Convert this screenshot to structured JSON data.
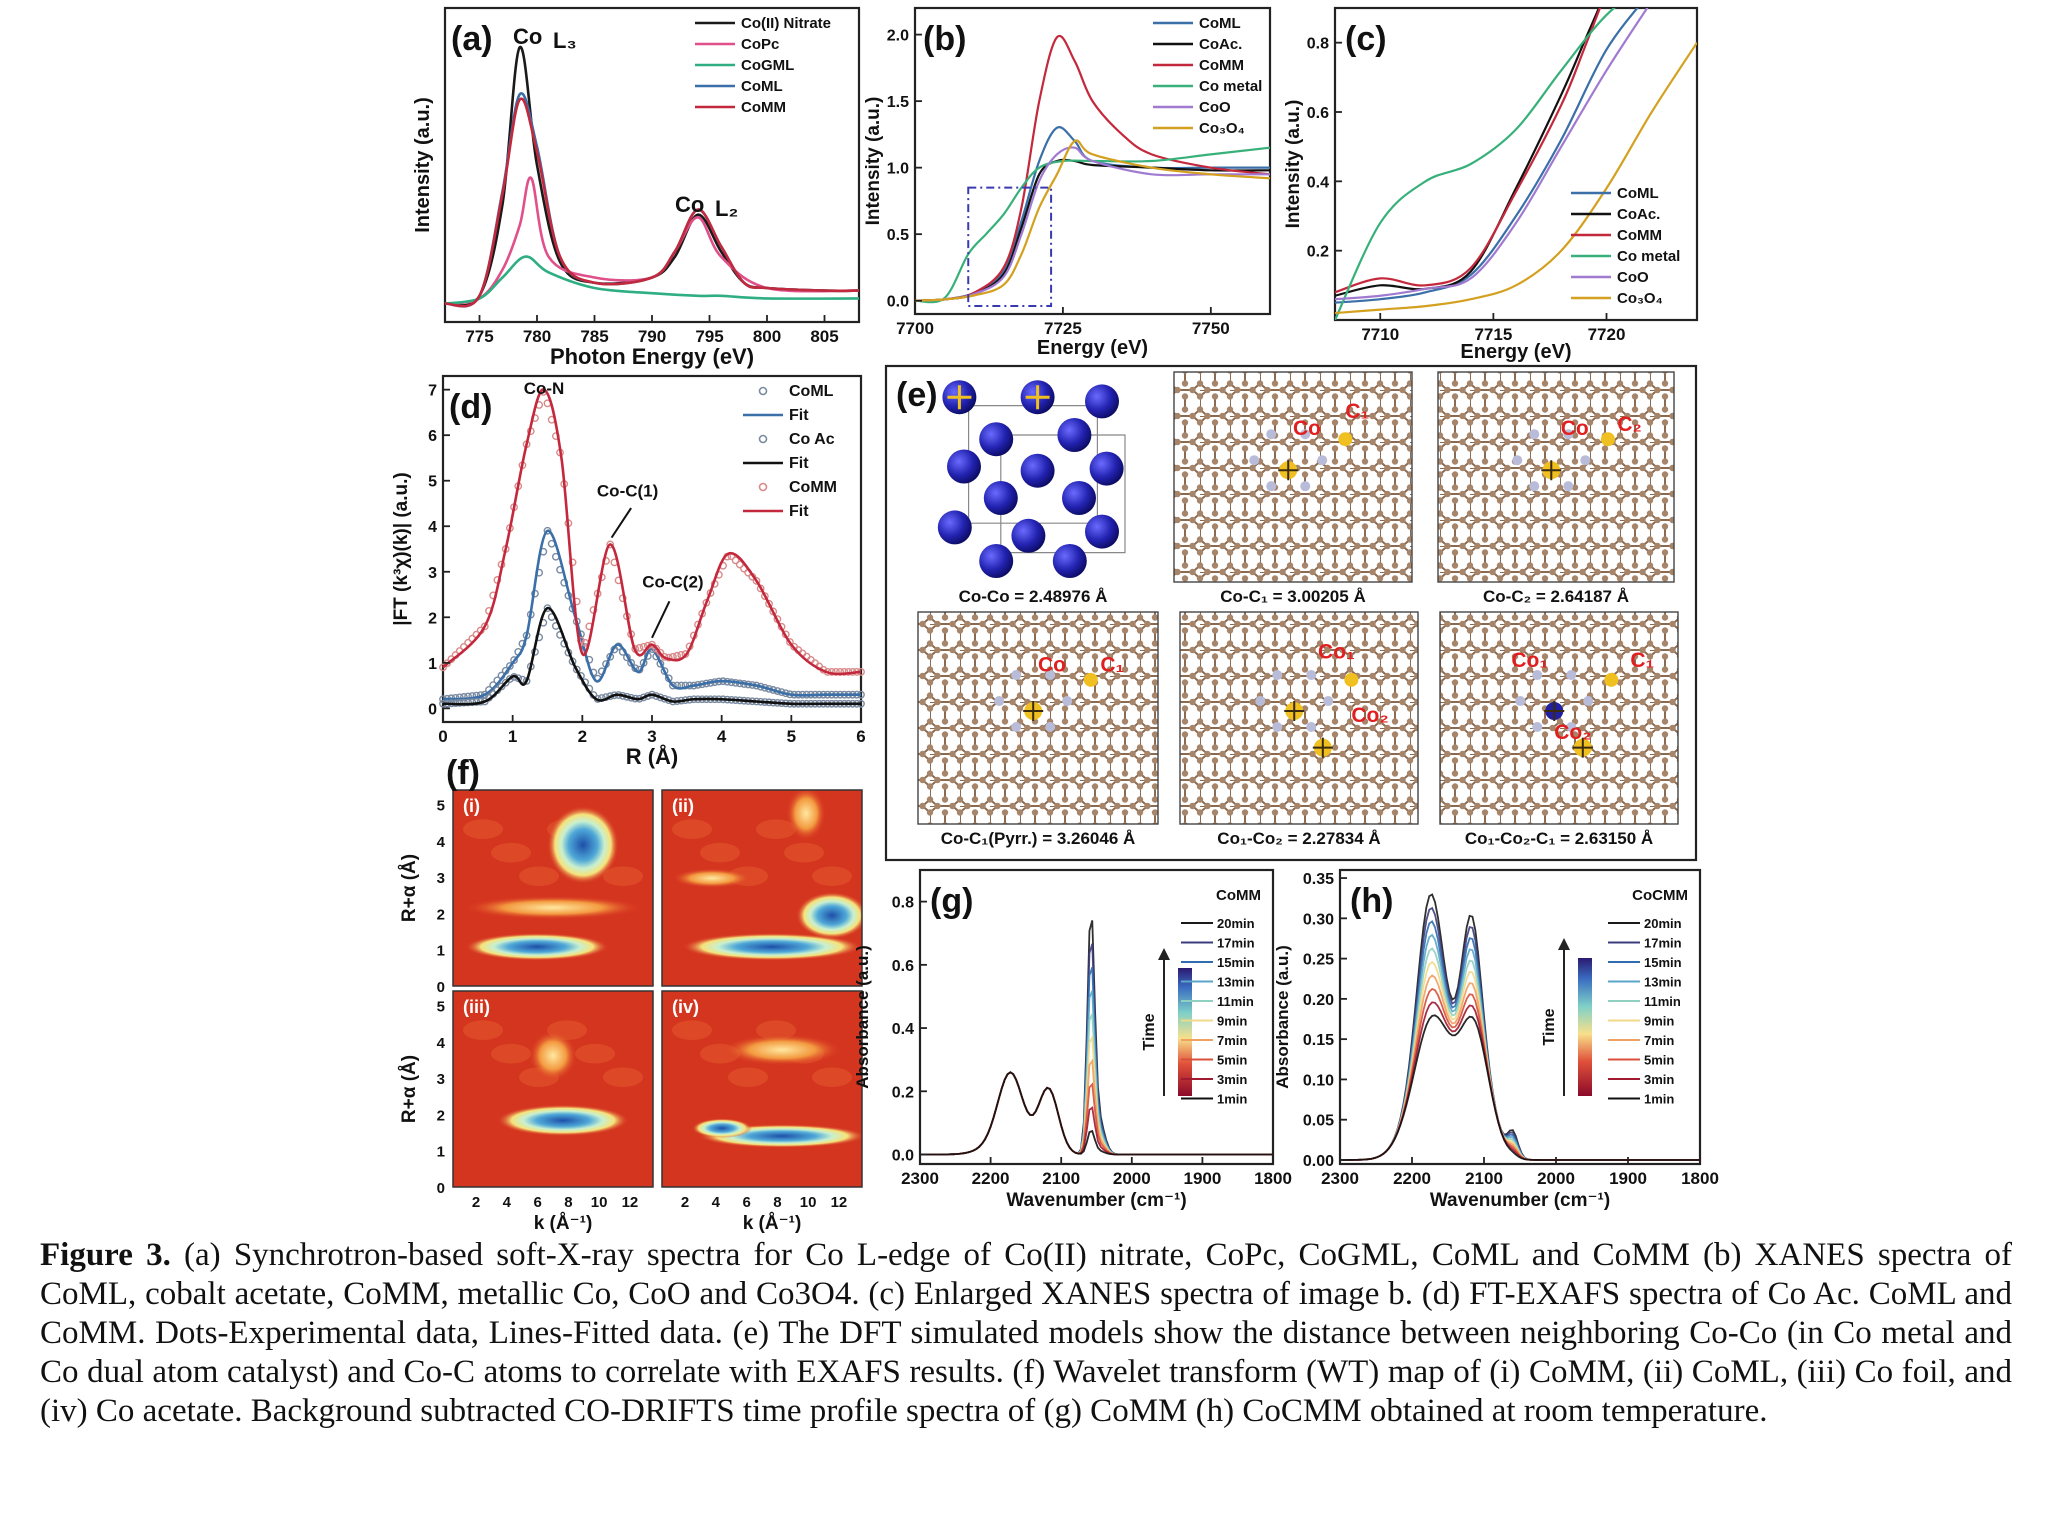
{
  "caption": {
    "label": "Figure 3.",
    "text": "(a) Synchrotron-based soft-X-ray spectra for Co L-edge of Co(II) nitrate, CoPc, CoGML, CoML and CoMM (b) XANES spectra of CoML, cobalt acetate, CoMM, metallic Co, CoO and Co3O4. (c) Enlarged XANES spectra of image b. (d) FT-EXAFS spectra of Co Ac. CoML and CoMM. Dots-Experimental data, Lines-Fitted data. (e) The DFT simulated models show the distance between neighboring Co-Co (in Co metal and Co dual atom catalyst) and Co-C atoms to correlate with EXAFS results. (f) Wavelet transform (WT) map of (i) CoMM, (ii) CoML, (iii) Co foil, and (iv) Co acetate. Background subtracted CO-DRIFTS time profile spectra of (g) CoMM (h) CoCMM obtained at room temperature."
  },
  "colors": {
    "co_nitrate": "#1a1a1a",
    "copc": "#e0508a",
    "cogml": "#2fae82",
    "coml": "#3a6fa8",
    "comm": "#c4283c",
    "co_metal": "#38b07a",
    "coo": "#a07ad0",
    "co3o4": "#d4a020",
    "coac": "#111111"
  },
  "chart_data": [
    {
      "panel": "(a)",
      "type": "line",
      "xlabel": "Photon Energy (eV)",
      "ylabel": "Intensity (a.u.)",
      "xticks": [
        "775",
        "780",
        "785",
        "790",
        "795",
        "800",
        "805"
      ],
      "xlim": [
        772,
        808
      ],
      "annotations": [
        "Co L3",
        "Co L2"
      ],
      "legend": [
        "Co(II) Nitrate",
        "CoPc",
        "CoGML",
        "CoML",
        "CoMM"
      ],
      "series": [
        {
          "name": "Co(II) Nitrate",
          "x": [
            772,
            775,
            777,
            778.5,
            780,
            782,
            785,
            790,
            792,
            794,
            796,
            798,
            800,
            805,
            808
          ],
          "y": [
            0.02,
            0.05,
            0.4,
            1.0,
            0.55,
            0.18,
            0.1,
            0.12,
            0.2,
            0.36,
            0.22,
            0.1,
            0.08,
            0.07,
            0.07
          ]
        },
        {
          "name": "CoPc",
          "x": [
            772,
            775,
            777,
            778.5,
            779.5,
            781,
            785,
            790,
            792,
            794,
            796,
            800,
            808
          ],
          "y": [
            0.02,
            0.04,
            0.15,
            0.32,
            0.5,
            0.2,
            0.12,
            0.12,
            0.22,
            0.35,
            0.2,
            0.08,
            0.07
          ]
        },
        {
          "name": "CoGML",
          "x": [
            772,
            775,
            777,
            779,
            781,
            785,
            790,
            794,
            796,
            800,
            808
          ],
          "y": [
            0.02,
            0.04,
            0.12,
            0.2,
            0.14,
            0.08,
            0.06,
            0.05,
            0.05,
            0.04,
            0.04
          ]
        },
        {
          "name": "CoML",
          "x": [
            772,
            775,
            777,
            778.5,
            780,
            782,
            785,
            790,
            792,
            794,
            796,
            798,
            800,
            805,
            808
          ],
          "y": [
            0.02,
            0.05,
            0.45,
            0.82,
            0.62,
            0.2,
            0.1,
            0.12,
            0.22,
            0.38,
            0.24,
            0.1,
            0.08,
            0.07,
            0.07
          ]
        },
        {
          "name": "CoMM",
          "x": [
            772,
            775,
            777,
            778.5,
            780,
            782,
            785,
            790,
            792,
            794,
            796,
            798,
            800,
            805,
            808
          ],
          "y": [
            0.02,
            0.05,
            0.44,
            0.8,
            0.6,
            0.2,
            0.1,
            0.12,
            0.22,
            0.38,
            0.24,
            0.1,
            0.08,
            0.07,
            0.07
          ]
        }
      ]
    },
    {
      "panel": "(b)",
      "type": "line",
      "xlabel": "Energy (eV)",
      "ylabel": "Intensity (a.u.)",
      "xticks": [
        "7700",
        "7725",
        "7750"
      ],
      "yticks": [
        "0.0",
        "0.5",
        "1.0",
        "1.5",
        "2.0"
      ],
      "xlim": [
        7700,
        7760
      ],
      "ylim": [
        -0.1,
        2.2
      ],
      "legend": [
        "CoML",
        "CoAc.",
        "CoMM",
        "Co metal",
        "CoO",
        "Co3O4"
      ],
      "series": [
        {
          "name": "CoML",
          "x": [
            7700,
            7705,
            7710,
            7715,
            7718,
            7721,
            7724,
            7727,
            7730,
            7740,
            7750,
            7760
          ],
          "y": [
            0.0,
            0.01,
            0.06,
            0.22,
            0.6,
            1.05,
            1.3,
            1.2,
            1.05,
            1.0,
            1.0,
            1.0
          ]
        },
        {
          "name": "CoAc.",
          "x": [
            7700,
            7705,
            7710,
            7715,
            7718,
            7721,
            7724,
            7727,
            7730,
            7740,
            7750,
            7760
          ],
          "y": [
            0.0,
            0.01,
            0.05,
            0.2,
            0.55,
            0.95,
            1.05,
            1.05,
            1.02,
            1.0,
            0.98,
            0.98
          ]
        },
        {
          "name": "CoMM",
          "x": [
            7700,
            7705,
            7710,
            7715,
            7718,
            7721,
            7724,
            7727,
            7730,
            7735,
            7740,
            7750,
            7760
          ],
          "y": [
            0.0,
            0.01,
            0.06,
            0.25,
            0.7,
            1.5,
            1.98,
            1.8,
            1.5,
            1.25,
            1.1,
            1.0,
            0.95
          ]
        },
        {
          "name": "Co metal",
          "x": [
            7700,
            7705,
            7709,
            7712,
            7715,
            7718,
            7721,
            7725,
            7730,
            7740,
            7750,
            7760
          ],
          "y": [
            0.0,
            0.02,
            0.35,
            0.5,
            0.65,
            0.85,
            1.0,
            1.05,
            1.05,
            1.05,
            1.1,
            1.15
          ]
        },
        {
          "name": "CoO",
          "x": [
            7700,
            7705,
            7710,
            7715,
            7718,
            7721,
            7724,
            7727,
            7730,
            7740,
            7750,
            7760
          ],
          "y": [
            0.0,
            0.01,
            0.05,
            0.18,
            0.5,
            0.9,
            1.1,
            1.15,
            1.05,
            0.95,
            0.95,
            0.95
          ]
        },
        {
          "name": "Co3O4",
          "x": [
            7700,
            7705,
            7710,
            7715,
            7718,
            7721,
            7724,
            7727,
            7730,
            7740,
            7750,
            7760
          ],
          "y": [
            0.0,
            0.01,
            0.04,
            0.12,
            0.35,
            0.7,
            0.95,
            1.2,
            1.1,
            1.0,
            0.95,
            0.92
          ]
        }
      ]
    },
    {
      "panel": "(c)",
      "type": "line",
      "xlabel": "Energy (eV)",
      "ylabel": "Intensity (a.u.)",
      "xticks": [
        "7710",
        "7715",
        "7720"
      ],
      "yticks": [
        "0.2",
        "0.4",
        "0.6",
        "0.8"
      ],
      "xlim": [
        7708,
        7724
      ],
      "ylim": [
        0.0,
        0.9
      ],
      "legend": [
        "CoML",
        "CoAc.",
        "CoMM",
        "Co metal",
        "CoO",
        "Co3O4"
      ],
      "series": [
        {
          "name": "CoML",
          "x": [
            7708,
            7710,
            7712,
            7714,
            7716,
            7718,
            7720,
            7722
          ],
          "y": [
            0.05,
            0.06,
            0.08,
            0.13,
            0.3,
            0.52,
            0.78,
            0.95
          ]
        },
        {
          "name": "CoAc.",
          "x": [
            7708,
            7710,
            7712,
            7714,
            7716,
            7718,
            7719,
            7720
          ],
          "y": [
            0.07,
            0.1,
            0.09,
            0.14,
            0.38,
            0.65,
            0.8,
            0.95
          ]
        },
        {
          "name": "CoMM",
          "x": [
            7708,
            7710,
            7712,
            7714,
            7716,
            7718,
            7719,
            7720
          ],
          "y": [
            0.08,
            0.12,
            0.1,
            0.15,
            0.37,
            0.62,
            0.78,
            0.95
          ]
        },
        {
          "name": "Co metal",
          "x": [
            7708,
            7710,
            7712,
            7714,
            7716,
            7718,
            7720,
            7722
          ],
          "y": [
            0.0,
            0.28,
            0.4,
            0.45,
            0.55,
            0.72,
            0.88,
            0.98
          ]
        },
        {
          "name": "CoO",
          "x": [
            7708,
            7710,
            7712,
            7714,
            7716,
            7718,
            7720,
            7722
          ],
          "y": [
            0.06,
            0.07,
            0.09,
            0.12,
            0.28,
            0.5,
            0.72,
            0.92
          ]
        },
        {
          "name": "Co3O4",
          "x": [
            7708,
            7710,
            7712,
            7714,
            7716,
            7718,
            7720,
            7722,
            7724
          ],
          "y": [
            0.02,
            0.03,
            0.04,
            0.06,
            0.1,
            0.2,
            0.38,
            0.6,
            0.8
          ]
        }
      ]
    },
    {
      "panel": "(d)",
      "type": "line",
      "xlabel": "R (Å)",
      "ylabel": "|FT (k³χ)(k)| (a.u.)",
      "xticks": [
        "0",
        "1",
        "2",
        "3",
        "4",
        "5",
        "6"
      ],
      "yticks": [
        "0",
        "1",
        "2",
        "3",
        "4",
        "5",
        "6",
        "7"
      ],
      "xlim": [
        0,
        6
      ],
      "ylim": [
        -0.3,
        7.3
      ],
      "annotations": [
        "Co-N",
        "Co-C(1)",
        "Co-C(2)"
      ],
      "legend": [
        "CoML",
        "Fit",
        "Co Ac",
        "Fit",
        "CoMM",
        "Fit"
      ],
      "series": [
        {
          "name": "CoML",
          "x": [
            0,
            0.6,
            1.0,
            1.2,
            1.5,
            1.9,
            2.2,
            2.5,
            2.8,
            3.0,
            3.3,
            3.6,
            4.0,
            4.5,
            5.0,
            5.5,
            6.0
          ],
          "y": [
            0.2,
            0.3,
            1.0,
            1.6,
            3.9,
            2.0,
            0.6,
            1.4,
            0.8,
            1.3,
            0.5,
            0.5,
            0.6,
            0.5,
            0.3,
            0.3,
            0.3
          ]
        },
        {
          "name": "Co Ac",
          "x": [
            0,
            0.6,
            1.0,
            1.2,
            1.5,
            1.9,
            2.2,
            2.5,
            2.8,
            3.0,
            3.3,
            3.6,
            4.0,
            4.5,
            5.0,
            5.5,
            6.0
          ],
          "y": [
            0.1,
            0.15,
            0.7,
            0.6,
            2.2,
            0.9,
            0.2,
            0.3,
            0.2,
            0.3,
            0.15,
            0.2,
            0.2,
            0.15,
            0.1,
            0.1,
            0.1
          ]
        },
        {
          "name": "CoMM",
          "x": [
            0,
            0.6,
            0.9,
            1.2,
            1.45,
            1.7,
            2.0,
            2.4,
            2.75,
            3.0,
            3.2,
            3.5,
            3.8,
            4.1,
            4.5,
            5.0,
            5.5,
            6.0
          ],
          "y": [
            0.9,
            1.8,
            3.5,
            5.8,
            7.0,
            5.5,
            1.2,
            3.6,
            1.3,
            1.4,
            1.1,
            1.2,
            2.4,
            3.4,
            2.8,
            1.4,
            0.8,
            0.8
          ]
        }
      ]
    },
    {
      "panel": "(f)",
      "type": "heatmap",
      "subpanels": [
        "(i)",
        "(ii)",
        "(iii)",
        "(iv)"
      ],
      "xlabel": "k (Å⁻¹)",
      "ylabel": "R+α (Å)",
      "xticks": [
        "2",
        "4",
        "6",
        "8",
        "10",
        "12"
      ],
      "yticks": [
        "0",
        "1",
        "2",
        "3",
        "4",
        "5"
      ]
    },
    {
      "panel": "(g)",
      "type": "line",
      "title": "CoMM",
      "xlabel": "Wavenumber (cm⁻¹)",
      "ylabel": "Absorbance (a.u.)",
      "xticks": [
        "2300",
        "2200",
        "2100",
        "2000",
        "1900",
        "1800"
      ],
      "yticks": [
        "0.0",
        "0.2",
        "0.4",
        "0.6",
        "0.8"
      ],
      "xlim": [
        2300,
        1800
      ],
      "ylim": [
        -0.03,
        0.9
      ],
      "colorbar_label": "Time",
      "legend": [
        "20min",
        "17min",
        "15min",
        "13min",
        "11min",
        "9min",
        "7min",
        "5min",
        "3min",
        "1min"
      ]
    },
    {
      "panel": "(h)",
      "type": "line",
      "title": "CoCMM",
      "xlabel": "Wavenumber (cm⁻¹)",
      "ylabel": "Absorbance (a.u.)",
      "xticks": [
        "2300",
        "2200",
        "2100",
        "2000",
        "1900",
        "1800"
      ],
      "yticks": [
        "0.00",
        "0.05",
        "0.10",
        "0.15",
        "0.20",
        "0.25",
        "0.30",
        "0.35"
      ],
      "xlim": [
        2300,
        1800
      ],
      "ylim": [
        -0.005,
        0.36
      ],
      "colorbar_label": "Time",
      "legend": [
        "20min",
        "17min",
        "15min",
        "13min",
        "11min",
        "9min",
        "7min",
        "5min",
        "3min",
        "1min"
      ]
    }
  ],
  "dft_models": [
    {
      "caption": "Co-Co = 2.48976 Å",
      "labels": []
    },
    {
      "caption": "Co-C₁ = 3.00205 Å",
      "labels": [
        "Co",
        "C₁"
      ]
    },
    {
      "caption": "Co-C₂ = 2.64187 Å",
      "labels": [
        "Co",
        "C₂"
      ]
    },
    {
      "caption": "Co-C₁(Pyrr.) = 3.26046 Å",
      "labels": [
        "Co",
        "C₁"
      ]
    },
    {
      "caption": "Co₁-Co₂ = 2.27834 Å",
      "labels": [
        "Co₁",
        "Co₂"
      ]
    },
    {
      "caption": "Co₁-Co₂-C₁ = 2.63150 Å",
      "labels": [
        "Co₁",
        "C₁",
        "Co₂"
      ]
    }
  ],
  "panel_e_label": "(e)"
}
